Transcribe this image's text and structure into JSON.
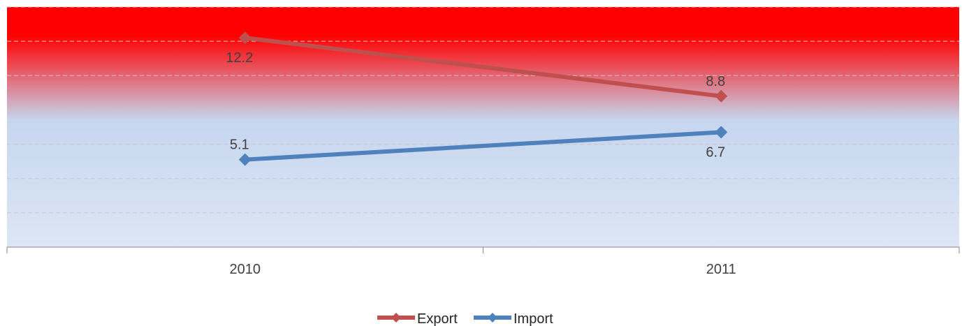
{
  "chart_data": {
    "type": "line",
    "title": "",
    "xlabel": "",
    "ylabel": "",
    "categories": [
      "2010",
      "2011"
    ],
    "ylim": [
      0,
      14
    ],
    "grid": true,
    "legend_position": "bottom",
    "series": [
      {
        "name": "Export",
        "values": [
          12.2,
          8.8
        ],
        "color": "#c0504d",
        "label_positions": [
          "below",
          "above"
        ]
      },
      {
        "name": "Import",
        "values": [
          5.1,
          6.7
        ],
        "color": "#4f81bd",
        "label_positions": [
          "above",
          "below"
        ]
      }
    ]
  },
  "background_gradient": {
    "top": "#ff0000",
    "middle": "#c6d6ef",
    "bottom": "#dde6f5"
  }
}
